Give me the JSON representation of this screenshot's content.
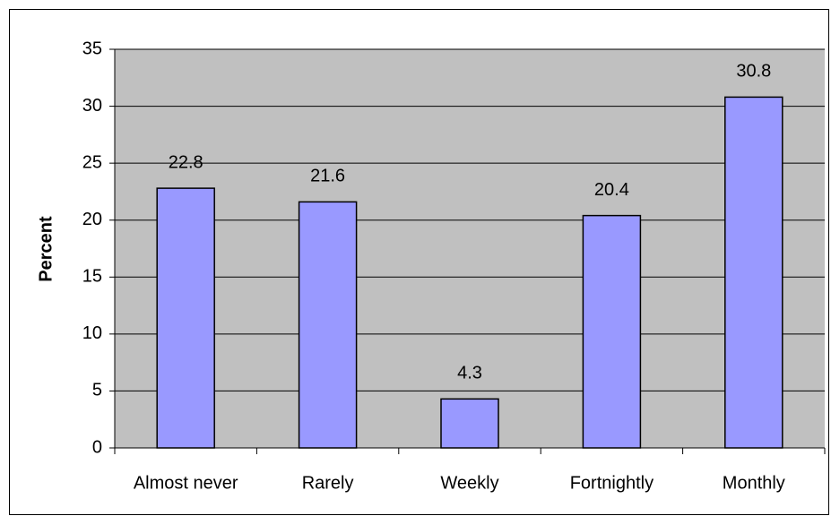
{
  "chart_data": {
    "type": "bar",
    "y_label": "Percent",
    "categories": [
      "Almost never",
      "Rarely",
      "Weekly",
      "Fortnightly",
      "Monthly"
    ],
    "values": [
      22.8,
      21.6,
      4.3,
      20.4,
      30.8
    ],
    "color": "#9999ff",
    "ylim": [
      0,
      35
    ],
    "yticks": [
      0,
      5,
      10,
      15,
      20,
      25,
      30,
      35
    ],
    "grid": true
  }
}
